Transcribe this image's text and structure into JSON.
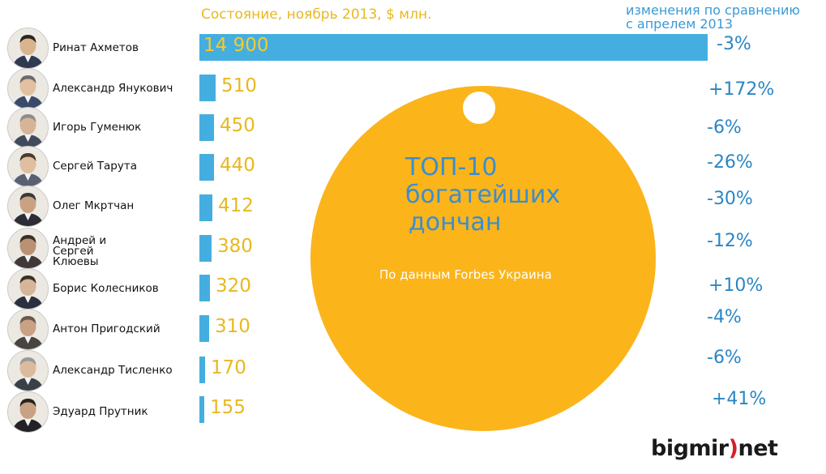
{
  "header": {
    "worth_label": "Состояние, ноябрь 2013, $ млн.",
    "change_label_line1": "изменения по сравнению",
    "change_label_line2": "с апрелем 2013"
  },
  "tag": {
    "title_lines": [
      "ТОП-10",
      "богатейших",
      "дончан"
    ],
    "subtitle": "По данным Forbes Украина"
  },
  "brand": {
    "part1": "bigmir",
    "part2": ")",
    "part3": "net"
  },
  "colors": {
    "bar": "#45aee0",
    "value": "#e8b820",
    "change": "#2a86c4",
    "tag": "#fbb41a"
  },
  "chart_data": {
    "type": "bar",
    "orientation": "horizontal",
    "title": "Состояние, ноябрь 2013, $ млн.",
    "categories": [
      "Ринат Ахметов",
      "Александр Янукович",
      "Игорь Гуменюк",
      "Сергей Тарута",
      "Олег Мкртчан",
      "Андрей и Сергей Клюевы",
      "Борис Колесников",
      "Антон Пригодский",
      "Александр Тисленко",
      "Эдуард Прутник"
    ],
    "name_lines": [
      [
        "Ринат Ахметов"
      ],
      [
        "Александр Янукович"
      ],
      [
        "Игорь Гуменюк"
      ],
      [
        "Сергей Тарута"
      ],
      [
        "Олег Мкртчан"
      ],
      [
        "Андрей и",
        "Сергей",
        "Клюевы"
      ],
      [
        "Борис Колесников"
      ],
      [
        "Антон Пригодский"
      ],
      [
        "Александр Тисленко"
      ],
      [
        "Эдуард Прутник"
      ]
    ],
    "values": [
      14900,
      510,
      450,
      440,
      412,
      380,
      320,
      310,
      170,
      155
    ],
    "value_labels": [
      "14 900",
      "510",
      "450",
      "440",
      "412",
      "380",
      "320",
      "310",
      "170",
      "155"
    ],
    "changes": [
      "-3%",
      "+172%",
      "-6%",
      "-26%",
      "-30%",
      "-12%",
      "+10%",
      "-4%",
      "-6%",
      "+41%"
    ]
  }
}
